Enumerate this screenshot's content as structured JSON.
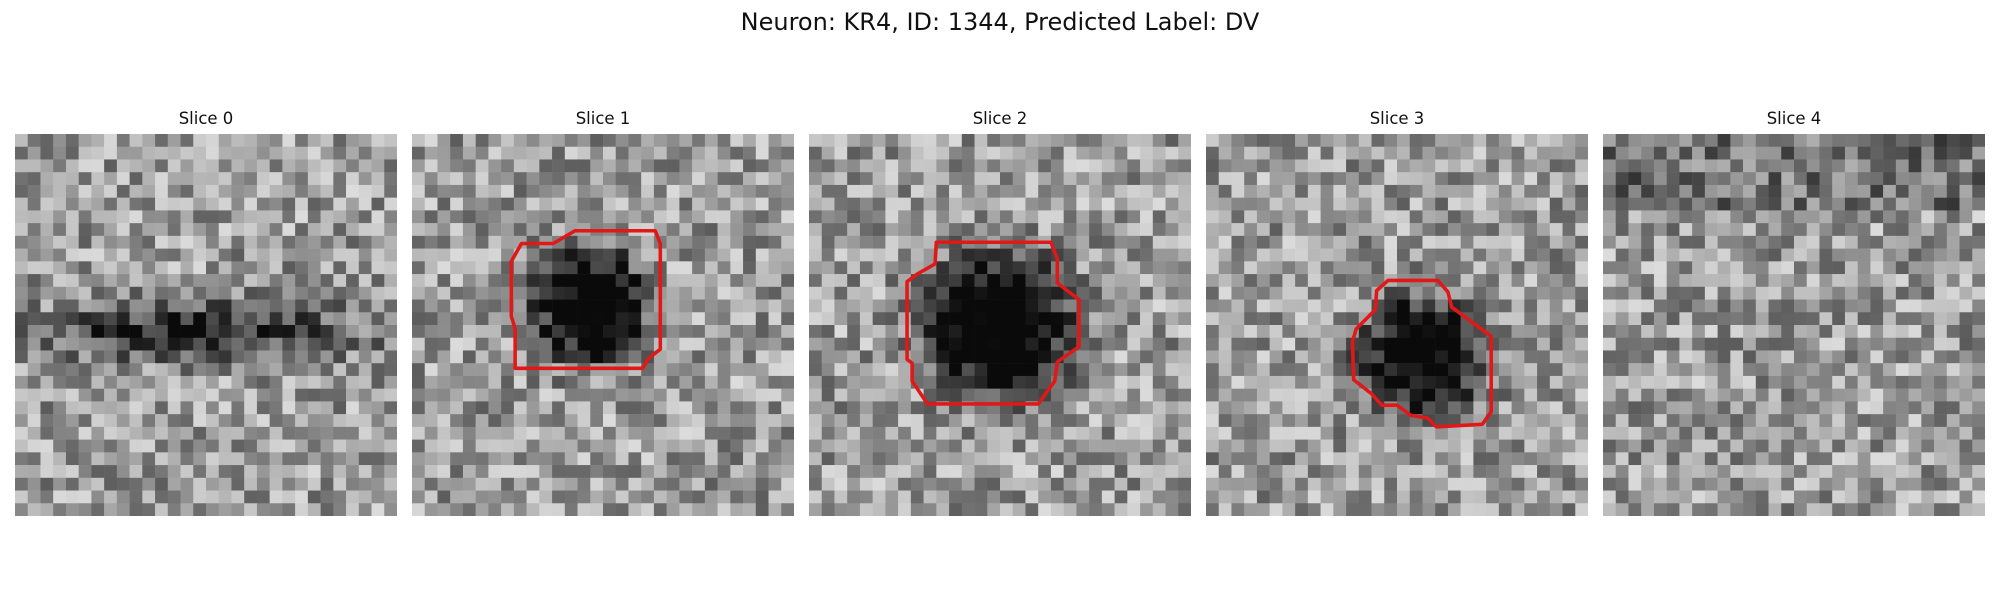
{
  "figure": {
    "title": "Neuron: KR4, ID: 1344, Predicted Label: DV",
    "contour_color": "#e01818"
  },
  "slices": [
    {
      "title": "Slice 0",
      "has_contour": false,
      "dark_blob": "horizontal-band"
    },
    {
      "title": "Slice 1",
      "has_contour": true,
      "dark_blob": "round-cell"
    },
    {
      "title": "Slice 2",
      "has_contour": true,
      "dark_blob": "round-cell-large"
    },
    {
      "title": "Slice 3",
      "has_contour": true,
      "dark_blob": "round-cell-small"
    },
    {
      "title": "Slice 4",
      "has_contour": false,
      "dark_blob": "none"
    }
  ]
}
